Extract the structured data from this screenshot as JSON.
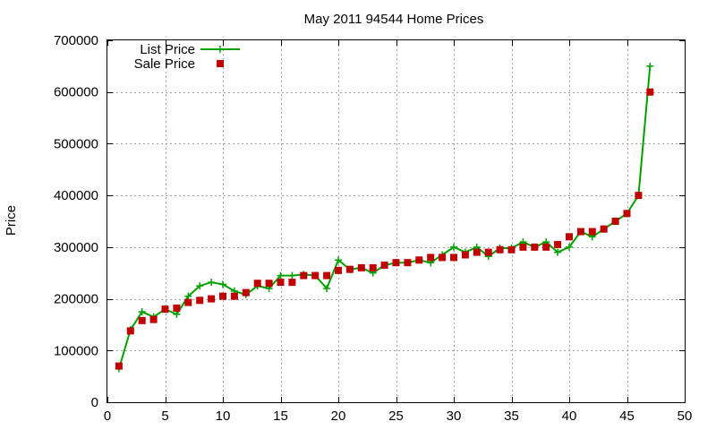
{
  "chart_data": {
    "type": "line",
    "title": "May 2011 94544 Home Prices",
    "xlabel": "",
    "ylabel": "Price",
    "xlim": [
      0,
      50
    ],
    "ylim": [
      0,
      700000
    ],
    "xticks": [
      0,
      5,
      10,
      15,
      20,
      25,
      30,
      35,
      40,
      45,
      50
    ],
    "yticks": [
      0,
      100000,
      200000,
      300000,
      400000,
      500000,
      600000,
      700000
    ],
    "grid": true,
    "legend_position": "top-left",
    "series": [
      {
        "name": "List Price",
        "style": "line-with-plus-markers",
        "color": "#00a000",
        "x": [
          1,
          2,
          3,
          4,
          5,
          6,
          7,
          8,
          9,
          10,
          11,
          12,
          13,
          14,
          15,
          16,
          17,
          18,
          19,
          20,
          21,
          22,
          23,
          24,
          25,
          26,
          27,
          28,
          29,
          30,
          31,
          32,
          33,
          34,
          35,
          36,
          37,
          38,
          39,
          40,
          41,
          42,
          43,
          44,
          45,
          46,
          47
        ],
        "y": [
          65000,
          140000,
          175000,
          165000,
          180000,
          170000,
          205000,
          225000,
          232000,
          228000,
          215000,
          208000,
          225000,
          220000,
          245000,
          245000,
          247000,
          245000,
          220000,
          275000,
          257000,
          260000,
          250000,
          265000,
          270000,
          270000,
          275000,
          270000,
          285000,
          300000,
          290000,
          300000,
          282000,
          298000,
          298000,
          310000,
          300000,
          310000,
          290000,
          300000,
          330000,
          320000,
          335000,
          350000,
          365000,
          400000,
          650000
        ]
      },
      {
        "name": "Sale Price",
        "style": "square-markers",
        "color": "#c00000",
        "x": [
          1,
          2,
          3,
          4,
          5,
          6,
          7,
          8,
          9,
          10,
          11,
          12,
          13,
          14,
          15,
          16,
          17,
          18,
          19,
          20,
          21,
          22,
          23,
          24,
          25,
          26,
          27,
          28,
          29,
          30,
          31,
          32,
          33,
          34,
          35,
          36,
          37,
          38,
          39,
          40,
          41,
          42,
          43,
          44,
          45,
          46,
          47
        ],
        "y": [
          70000,
          138000,
          158000,
          160000,
          180000,
          182000,
          193000,
          197000,
          200000,
          205000,
          205000,
          212000,
          230000,
          230000,
          232000,
          232000,
          245000,
          245000,
          245000,
          255000,
          257000,
          260000,
          260000,
          265000,
          270000,
          270000,
          275000,
          280000,
          280000,
          280000,
          285000,
          290000,
          290000,
          295000,
          295000,
          300000,
          300000,
          300000,
          305000,
          320000,
          330000,
          330000,
          335000,
          350000,
          365000,
          400000,
          600000
        ]
      }
    ]
  }
}
